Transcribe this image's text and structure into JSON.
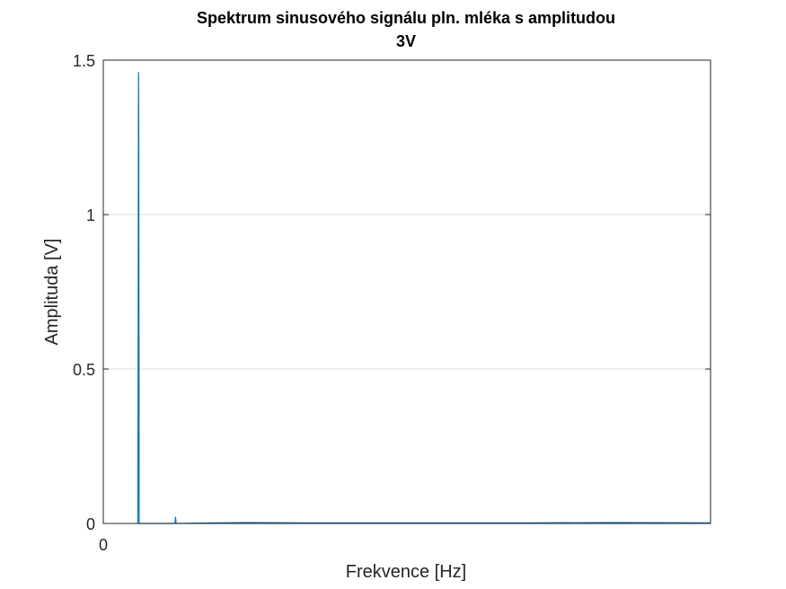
{
  "chart_data": {
    "type": "line",
    "title_line1": "Spektrum sinusového signálu pln. mléka s amplitudou",
    "title_line2": "3V",
    "xlabel": "Frekvence [Hz]",
    "ylabel": "Amplituda [V]",
    "xlim": [
      0,
      100
    ],
    "ylim": [
      0,
      1.5
    ],
    "x_ticks": [
      {
        "value": 0,
        "label": "0"
      }
    ],
    "y_ticks": [
      {
        "value": 0,
        "label": "0"
      },
      {
        "value": 0.5,
        "label": "0.5"
      },
      {
        "value": 1,
        "label": "1"
      },
      {
        "value": 1.5,
        "label": "1.5"
      }
    ],
    "grid": {
      "x": false,
      "y": true
    },
    "series": [
      {
        "color": "#0072bd",
        "x": [
          5.7,
          5.8,
          5.85,
          5.9,
          6.0,
          11.8,
          11.9,
          12.0,
          18.0,
          24.0,
          33.0,
          45.0,
          62.0,
          71.0,
          84.0,
          100.0
        ],
        "y": [
          0.0,
          1.46,
          1.25,
          0.0,
          0.0,
          0.0,
          0.02,
          0.0,
          0.002,
          0.003,
          0.002,
          0.002,
          0.002,
          0.002,
          0.003,
          0.002
        ]
      }
    ]
  }
}
